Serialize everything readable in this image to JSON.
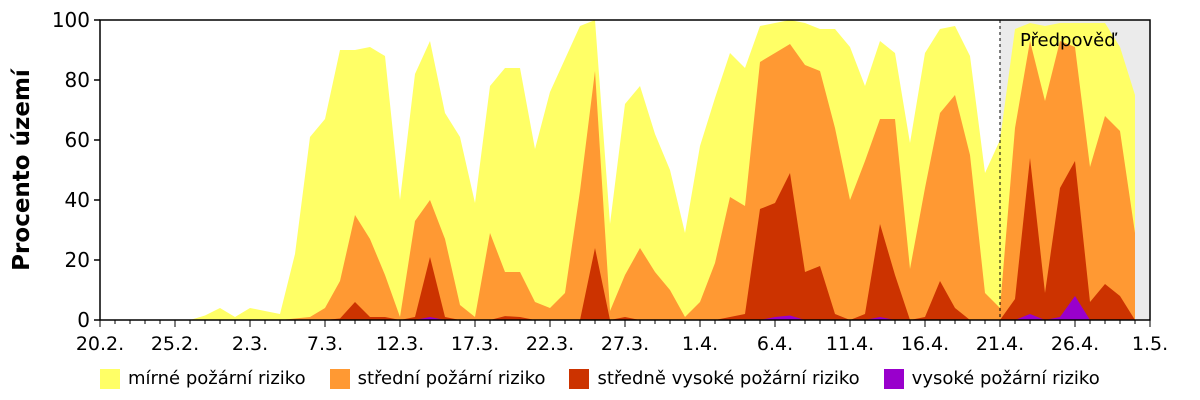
{
  "chart_data": {
    "type": "area",
    "stacked": true,
    "title": "",
    "xlabel": "",
    "ylabel": "Procento území",
    "ylim": [
      0,
      100
    ],
    "yticks": [
      0,
      20,
      40,
      60,
      80,
      100
    ],
    "x_start": "20.2.",
    "x_end": "1.5.",
    "x_days": 70,
    "xtick_labels": [
      "20.2.",
      "25.2.",
      "2.3.",
      "7.3.",
      "12.3.",
      "17.3.",
      "22.3.",
      "27.3.",
      "1.4.",
      "6.4.",
      "11.4.",
      "16.4.",
      "21.4.",
      "26.4.",
      "1.5."
    ],
    "xtick_step_days": 5,
    "grid": false,
    "legend_position": "bottom",
    "forecast": {
      "label": "Předpověď",
      "start_day": 60,
      "end_day": 70,
      "shade": "#ebebeb"
    },
    "notes": "Values per day index (0 = 20.2.). Series values are individual layer heights; stacked in order listed (bottom first: vysoké, středně vysoké, střední, mírné).",
    "series": [
      {
        "name": "vysoké požární riziko",
        "color": "#9900cc",
        "values": [
          0,
          0,
          0,
          0,
          0,
          0,
          0,
          0,
          0,
          0,
          0,
          0,
          0,
          0,
          0,
          0,
          0,
          0,
          0,
          0,
          0,
          0,
          1,
          0,
          0,
          0,
          0,
          0,
          0,
          0,
          0,
          0,
          0,
          0,
          0,
          0,
          0,
          0,
          0,
          0,
          0,
          0,
          0,
          0,
          0,
          1,
          1.5,
          0,
          0,
          0,
          0,
          0,
          1,
          0,
          0,
          0,
          0,
          0,
          0,
          0,
          0,
          0,
          2,
          0,
          1,
          8,
          0,
          0,
          0,
          0
        ]
      },
      {
        "name": "středně vysoké požární riziko",
        "color": "#cc3300",
        "values": [
          0,
          0,
          0,
          0,
          0,
          0,
          0,
          0,
          0,
          0,
          0,
          0,
          0,
          0,
          0,
          0,
          0.5,
          6,
          1,
          1,
          0,
          1,
          20,
          1,
          0,
          0,
          0,
          1.3,
          1,
          0,
          0,
          0,
          0,
          24,
          0,
          1,
          0,
          0,
          0,
          0,
          0,
          0,
          1,
          2,
          37,
          38,
          47.5,
          16,
          18,
          2,
          0,
          2,
          31,
          15,
          0,
          1,
          13,
          4,
          0,
          0,
          0,
          7,
          52,
          9,
          43,
          45,
          6,
          12,
          8,
          0
        ]
      },
      {
        "name": "střední požární riziko",
        "color": "#ff9933",
        "values": [
          0,
          0,
          0,
          0,
          0,
          0,
          0,
          0,
          0,
          0,
          0,
          0,
          0,
          0.5,
          1,
          4,
          12.5,
          29,
          26,
          14,
          1,
          32,
          19,
          26,
          5,
          1,
          29,
          14.7,
          15,
          6,
          4,
          9,
          43,
          59,
          3,
          14,
          24,
          16,
          10,
          1,
          6,
          19,
          40,
          36,
          49,
          50,
          43,
          69,
          65,
          62,
          40,
          51,
          35,
          52,
          17,
          43,
          56,
          71,
          55,
          9,
          4,
          57,
          39,
          64,
          49,
          38,
          45,
          56,
          55,
          29
        ]
      },
      {
        "name": "mírné požární riziko",
        "color": "#ffff66",
        "values": [
          0,
          0,
          0,
          0,
          0,
          0,
          0,
          1.5,
          4,
          1,
          4,
          3,
          2,
          21.5,
          60,
          63,
          77,
          55,
          64,
          73,
          39,
          49,
          53,
          42,
          56,
          38,
          49,
          68,
          68,
          51,
          72,
          78,
          55,
          17,
          29,
          57,
          54,
          46,
          40,
          28,
          52,
          55,
          48,
          46,
          12,
          10,
          8,
          14,
          14,
          33,
          51,
          25,
          26,
          22,
          42,
          45,
          28,
          23,
          33,
          40,
          56,
          33,
          6,
          25,
          6,
          8,
          48,
          31,
          28,
          46
        ]
      }
    ],
    "cumulative_top": [
      0,
      0,
      0,
      0,
      0,
      0,
      0,
      1.5,
      4,
      1,
      4,
      3,
      2,
      22,
      61,
      67,
      90,
      90,
      91,
      88,
      40,
      82,
      93,
      69,
      61,
      39,
      78,
      84,
      84,
      57,
      76,
      87,
      98,
      100,
      32,
      72,
      78,
      62,
      50,
      29,
      58,
      74,
      89,
      84,
      98,
      99,
      100,
      99,
      97,
      97,
      91,
      78,
      93,
      89,
      59,
      89,
      97,
      98,
      88,
      49,
      60,
      97,
      99,
      98,
      99,
      99,
      99,
      99,
      91,
      75
    ]
  },
  "legend": {
    "items": [
      {
        "label": "mírné požární riziko",
        "color": "#ffff66"
      },
      {
        "label": "střední požární riziko",
        "color": "#ff9933"
      },
      {
        "label": "středně vysoké požární riziko",
        "color": "#cc3300"
      },
      {
        "label": "vysoké požární riziko",
        "color": "#9900cc"
      }
    ]
  },
  "forecast_label": "Předpověď",
  "ylabel": "Procento území"
}
